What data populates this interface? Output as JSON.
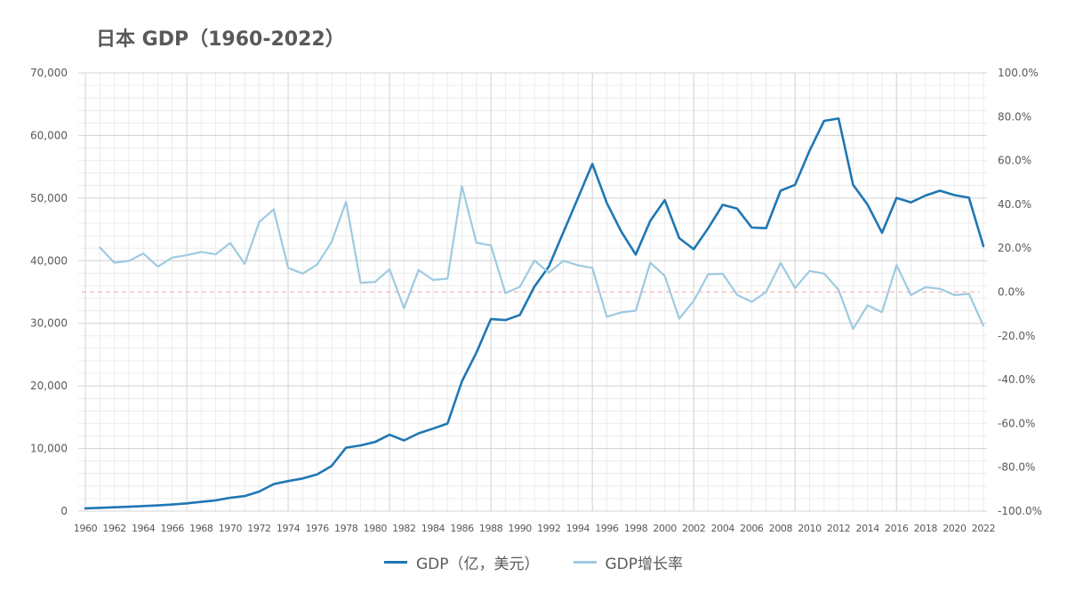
{
  "chart_data": {
    "type": "line",
    "title": "日本 GDP（1960-2022）",
    "x": [
      1960,
      1961,
      1962,
      1963,
      1964,
      1965,
      1966,
      1967,
      1968,
      1969,
      1970,
      1971,
      1972,
      1973,
      1974,
      1975,
      1976,
      1977,
      1978,
      1979,
      1980,
      1981,
      1982,
      1983,
      1984,
      1985,
      1986,
      1987,
      1988,
      1989,
      1990,
      1991,
      1992,
      1993,
      1994,
      1995,
      1996,
      1997,
      1998,
      1999,
      2000,
      2001,
      2002,
      2003,
      2004,
      2005,
      2006,
      2007,
      2008,
      2009,
      2010,
      2011,
      2012,
      2013,
      2014,
      2015,
      2016,
      2017,
      2018,
      2019,
      2020,
      2021,
      2022
    ],
    "x_tick_labels": [
      "1960",
      "1962",
      "1964",
      "1966",
      "1968",
      "1970",
      "1972",
      "1974",
      "1976",
      "1978",
      "1980",
      "1982",
      "1984",
      "1986",
      "1988",
      "1990",
      "1992",
      "1994",
      "1996",
      "1998",
      "2000",
      "2002",
      "2004",
      "2006",
      "2008",
      "2010",
      "2012",
      "2014",
      "2016",
      "2018",
      "2020",
      "2022"
    ],
    "y_left": {
      "ylim": [
        0,
        70000
      ],
      "ticks": [
        "0",
        "10,000",
        "20,000",
        "30,000",
        "40,000",
        "50,000",
        "60,000",
        "70,000"
      ]
    },
    "y_right": {
      "ylim": [
        -100,
        100
      ],
      "ticks": [
        "-100.0%",
        "-80.0%",
        "-60.0%",
        "-40.0%",
        "-20.0%",
        "0.0%",
        "20.0%",
        "40.0%",
        "60.0%",
        "80.0%",
        "100.0%"
      ]
    },
    "grid": true,
    "legend_position": "bottom",
    "reference_line": {
      "axis": "right",
      "value": 0,
      "color": "#f4b6b6"
    },
    "series": [
      {
        "name": "GDP（亿，美元）",
        "axis": "left",
        "color": "#1f77b4",
        "values": [
          443,
          530,
          610,
          690,
          810,
          910,
          1050,
          1230,
          1470,
          1720,
          2130,
          2400,
          3130,
          4310,
          4800,
          5210,
          5860,
          7210,
          10140,
          10500,
          11050,
          12190,
          11290,
          12430,
          13170,
          13980,
          20730,
          25320,
          30680,
          30520,
          31330,
          35850,
          39090,
          44540,
          49980,
          55460,
          49220,
          44660,
          40980,
          46360,
          49680,
          43600,
          41830,
          45190,
          48930,
          48310,
          45300,
          45200,
          51190,
          52120,
          57590,
          62330,
          62720,
          52120,
          48960,
          44450,
          50030,
          49310,
          50410,
          51180,
          50480,
          50060,
          42330
        ]
      },
      {
        "name": "GDP增长率",
        "axis": "right",
        "color": "#9ecae1",
        "values": [
          null,
          20.3,
          13.4,
          14.1,
          17.6,
          11.6,
          15.7,
          16.8,
          18.3,
          17.2,
          22.4,
          12.8,
          31.9,
          37.7,
          11.0,
          8.4,
          12.5,
          22.8,
          41.2,
          4.2,
          4.6,
          10.4,
          -7.4,
          10.0,
          5.5,
          6.1,
          48.3,
          22.5,
          21.2,
          -0.5,
          2.4,
          14.4,
          8.8,
          14.3,
          12.2,
          11.0,
          -11.3,
          -9.3,
          -8.5,
          13.4,
          7.4,
          -12.2,
          -4.0,
          8.1,
          8.3,
          -1.3,
          -4.5,
          0.0,
          13.3,
          1.8,
          9.6,
          8.4,
          1.0,
          -16.9,
          -6.1,
          -9.2,
          12.3,
          -1.4,
          2.2,
          1.5,
          -1.4,
          -0.8,
          -15.4
        ]
      }
    ]
  }
}
